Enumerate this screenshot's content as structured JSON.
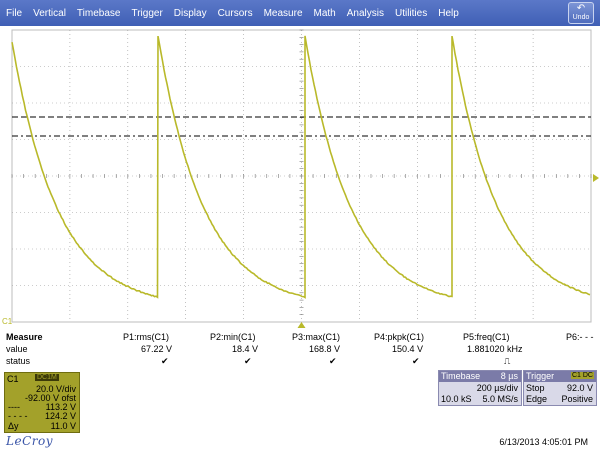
{
  "menu": {
    "items": [
      "File",
      "Vertical",
      "Timebase",
      "Trigger",
      "Display",
      "Cursors",
      "Measure",
      "Math",
      "Analysis",
      "Utilities",
      "Help"
    ],
    "undo_label": "Undo"
  },
  "colors": {
    "trace": "#b9b92a",
    "grid": "#9a9a9a",
    "menubar": "#4a68bd",
    "c1_box": "#a3a12a",
    "marker": "#b9b92a"
  },
  "display": {
    "channel_marker": "C1",
    "trigger_marker_icon": "triangle-up-icon",
    "grid": true,
    "divisions_x": 10,
    "divisions_y": 8,
    "waveform": "sawtooth-exponential-decay",
    "cycles_visible": 4
  },
  "measure": {
    "heading": "Measure",
    "row_labels": [
      "value",
      "status"
    ],
    "params": [
      {
        "name": "P1:rms(C1)",
        "value": "67.22 V",
        "status": "✔"
      },
      {
        "name": "P2:min(C1)",
        "value": "18.4 V",
        "status": "✔"
      },
      {
        "name": "P3:max(C1)",
        "value": "168.8 V",
        "status": "✔"
      },
      {
        "name": "P4:pkpk(C1)",
        "value": "150.4 V",
        "status": "✔"
      },
      {
        "name": "P5:freq(C1)",
        "value": "1.881020 kHz",
        "status": "⎍"
      },
      {
        "name": "P6:- - -",
        "value": "",
        "status": ""
      }
    ]
  },
  "c1": {
    "label": "C1",
    "badge": "DC1M",
    "vdiv": "20.0 V/div",
    "offset": "-92.00 V ofst",
    "cursor1_sym": "----",
    "cursor1": "113.2 V",
    "cursor2_sym": "- - - -",
    "cursor2": "124.2 V",
    "delta_sym": "Δy",
    "delta": "11.0 V"
  },
  "timebase": {
    "title": "Timebase",
    "delay": "8 µs",
    "div": "200 µs/div",
    "samples": "10.0 kS",
    "rate": "5.0 MS/s"
  },
  "trigger": {
    "title": "Trigger",
    "badge": "C1 DC",
    "mode": "Stop",
    "level": "92.0 V",
    "type": "Edge",
    "slope": "Positive"
  },
  "footer": {
    "logo": "LeCroy",
    "datetime": "6/13/2013 4:05:01 PM"
  }
}
